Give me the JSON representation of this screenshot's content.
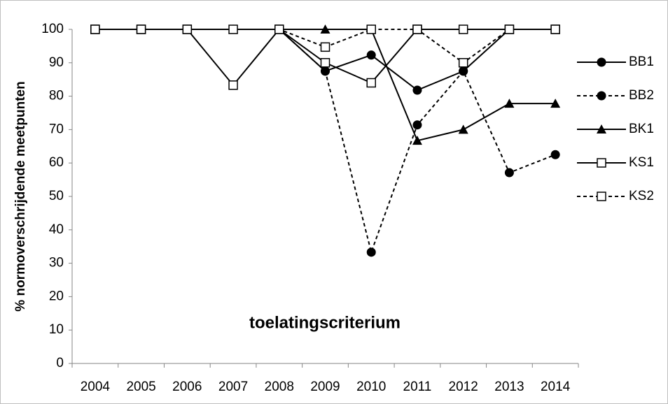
{
  "chart_data": {
    "type": "line",
    "y_label": "% normoverschrijdende meetpunten",
    "annotation": "toelatingscriterium",
    "categories": [
      "2004",
      "2005",
      "2006",
      "2007",
      "2008",
      "2009",
      "2010",
      "2011",
      "2012",
      "2013",
      "2014"
    ],
    "series": [
      {
        "name": "BB1",
        "color": "#000000",
        "line_style": "solid",
        "marker": "circle",
        "values": [
          100,
          100,
          100,
          100,
          100,
          87.5,
          92.3,
          81.8,
          87.5,
          100,
          100
        ]
      },
      {
        "name": "BB2",
        "color": "#000000",
        "line_style": "dashed",
        "marker": "circle",
        "values": [
          100,
          100,
          100,
          100,
          100,
          87.5,
          33.3,
          71.4,
          87.5,
          57.1,
          62.5
        ]
      },
      {
        "name": "BK1",
        "color": "#000000",
        "line_style": "solid",
        "marker": "triangle",
        "values": [
          100,
          100,
          100,
          100,
          100,
          100,
          100,
          66.7,
          70,
          77.8,
          77.8
        ]
      },
      {
        "name": "KS1",
        "color": "#000000",
        "line_style": "solid",
        "marker": "square-open",
        "values": [
          100,
          100,
          100,
          83.3,
          100,
          90,
          84,
          100,
          100,
          100,
          100
        ]
      },
      {
        "name": "KS2",
        "color": "#000000",
        "line_style": "dashed",
        "marker": "square-open",
        "values": [
          100,
          100,
          100,
          100,
          100,
          94.7,
          100,
          100,
          90,
          100,
          100
        ]
      }
    ],
    "ylim": [
      0,
      100
    ],
    "yticks": [
      0,
      10,
      20,
      30,
      40,
      50,
      60,
      70,
      80,
      90,
      100
    ],
    "legend": "right"
  }
}
